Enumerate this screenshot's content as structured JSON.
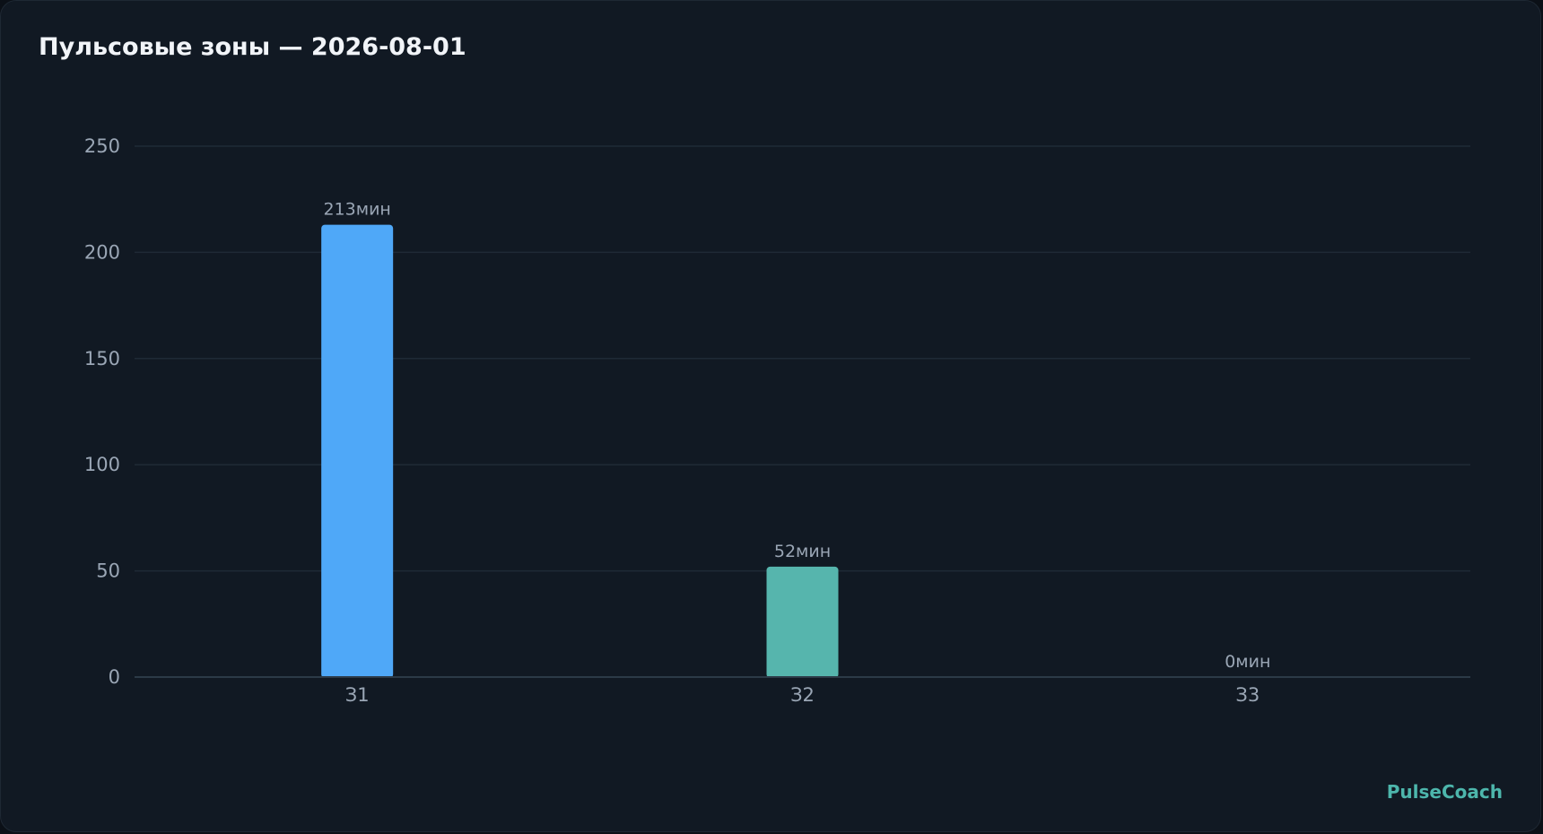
{
  "header": {
    "title": "Пульсовые зоны — 2026-08-01"
  },
  "brand": {
    "name": "PulseCoach",
    "color": "#4db6ac"
  },
  "chart_data": {
    "type": "bar",
    "categories": [
      "З1",
      "З2",
      "З3"
    ],
    "values": [
      213,
      52,
      0
    ],
    "value_labels": [
      "213мин",
      "52мин",
      "0мин"
    ],
    "colors": [
      "#4fa8f8",
      "#56b5ad",
      "#56b5ad"
    ],
    "ylim": [
      0,
      250
    ],
    "yticks": [
      0,
      50,
      100,
      150,
      200,
      250
    ],
    "grid": true,
    "xlabel": "",
    "ylabel": ""
  }
}
